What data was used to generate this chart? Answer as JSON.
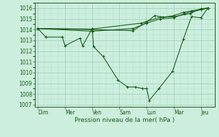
{
  "background_color": "#cceedd",
  "grid_major_color": "#99ccbb",
  "grid_minor_color": "#aaddcc",
  "line_color": "#1a5c1a",
  "marker_color": "#1a5c1a",
  "x_labels": [
    "Dim",
    "Mer",
    "Ven",
    "Sam",
    "Lun",
    "Mar",
    "Jeu"
  ],
  "x_tick_positions": [
    0,
    1,
    2,
    3,
    4,
    5,
    6
  ],
  "xlabel": "Pression niveau de la mer( hPa )",
  "ylim": [
    1006.8,
    1016.5
  ],
  "xlim": [
    -0.1,
    6.5
  ],
  "yticks": [
    1007,
    1008,
    1009,
    1010,
    1011,
    1012,
    1013,
    1014,
    1015,
    1016
  ],
  "label_fontsize": 6.5,
  "tick_fontsize": 5.5,
  "series": [
    {
      "x": [
        0.0,
        0.3,
        0.9,
        1.0,
        1.55,
        1.65,
        2.0,
        2.05,
        2.4,
        2.95,
        3.3,
        3.6,
        3.85,
        4.0,
        4.1,
        4.45,
        4.95,
        5.35,
        5.65,
        6.0,
        6.25
      ],
      "y": [
        1014.1,
        1013.3,
        1013.3,
        1012.5,
        1013.2,
        1012.5,
        1014.1,
        1012.4,
        1011.5,
        1009.3,
        1008.65,
        1008.65,
        1008.5,
        1008.5,
        1007.4,
        1008.5,
        1010.1,
        1013.1,
        1015.2,
        1015.1,
        1016.0
      ]
    },
    {
      "x": [
        0.0,
        2.0,
        3.8,
        4.5,
        5.0,
        5.6,
        6.0,
        6.25
      ],
      "y": [
        1014.1,
        1014.05,
        1014.6,
        1015.15,
        1015.2,
        1015.5,
        1015.95,
        1016.0
      ]
    },
    {
      "x": [
        0.0,
        2.0,
        3.5,
        4.0,
        4.5,
        5.0,
        5.4,
        5.65,
        6.0,
        6.25
      ],
      "y": [
        1014.1,
        1013.85,
        1014.1,
        1014.6,
        1015.0,
        1015.1,
        1015.5,
        1015.65,
        1015.85,
        1016.0
      ]
    },
    {
      "x": [
        0.0,
        2.0,
        3.5,
        4.0,
        4.3,
        4.6,
        5.0,
        5.35,
        5.65,
        6.0,
        6.25
      ],
      "y": [
        1014.1,
        1014.0,
        1013.9,
        1014.7,
        1015.3,
        1015.15,
        1015.3,
        1015.6,
        1015.75,
        1015.9,
        1016.0
      ]
    }
  ]
}
